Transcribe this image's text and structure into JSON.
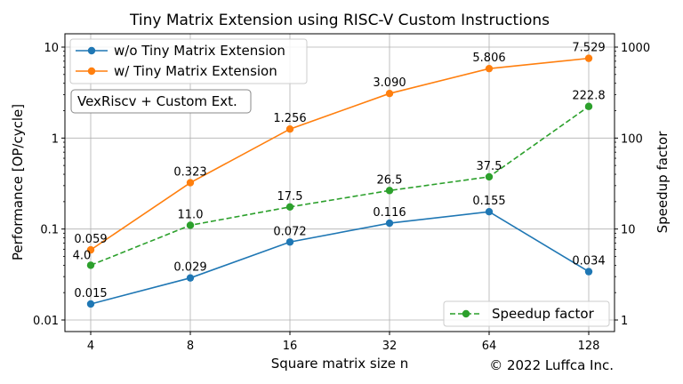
{
  "chart_data": {
    "type": "line",
    "title": "Tiny Matrix Extension using RISC-V Custom Instructions",
    "xlabel": "Square matrix size n",
    "ylabel_left": "Performance [OP/cycle]",
    "ylabel_right": "Speedup factor",
    "x_scale": "log2",
    "y_left_scale": "log",
    "y_right_scale": "log",
    "x": [
      4,
      8,
      16,
      32,
      64,
      128
    ],
    "x_tick_labels": [
      "4",
      "8",
      "16",
      "32",
      "64",
      "128"
    ],
    "y_left_ticks": [
      0.01,
      0.1,
      1,
      10
    ],
    "y_left_tick_labels": [
      "0.01",
      "0.1",
      "1",
      "10"
    ],
    "y_right_ticks": [
      1,
      10,
      100,
      1000
    ],
    "y_right_tick_labels": [
      "1",
      "10",
      "100",
      "1000"
    ],
    "grid": true,
    "series": [
      {
        "name": "w/o Tiny Matrix Extension",
        "axis": "left",
        "color": "#1f77b4",
        "line_style": "solid",
        "values": [
          0.015,
          0.029,
          0.072,
          0.116,
          0.155,
          0.034
        ],
        "labels": [
          "0.015",
          "0.029",
          "0.072",
          "0.116",
          "0.155",
          "0.034"
        ]
      },
      {
        "name": "w/ Tiny Matrix Extension",
        "axis": "left",
        "color": "#ff7f0e",
        "line_style": "solid",
        "values": [
          0.059,
          0.323,
          1.256,
          3.09,
          5.806,
          7.529
        ],
        "labels": [
          "0.059",
          "0.323",
          "1.256",
          "3.090",
          "5.806",
          "7.529"
        ]
      },
      {
        "name": "Speedup factor",
        "axis": "right",
        "color": "#2ca02c",
        "line_style": "dashed",
        "values": [
          4.0,
          11.0,
          17.5,
          26.5,
          37.5,
          222.8
        ],
        "labels": [
          "4.0",
          "11.0",
          "17.5",
          "26.5",
          "37.5",
          "222.8"
        ]
      }
    ],
    "legend_left_placement": "top-left",
    "legend_right_placement": "bottom-right",
    "annotation_box": "VexRiscv + Custom Ext.",
    "copyright": "© 2022 Luffca Inc."
  }
}
